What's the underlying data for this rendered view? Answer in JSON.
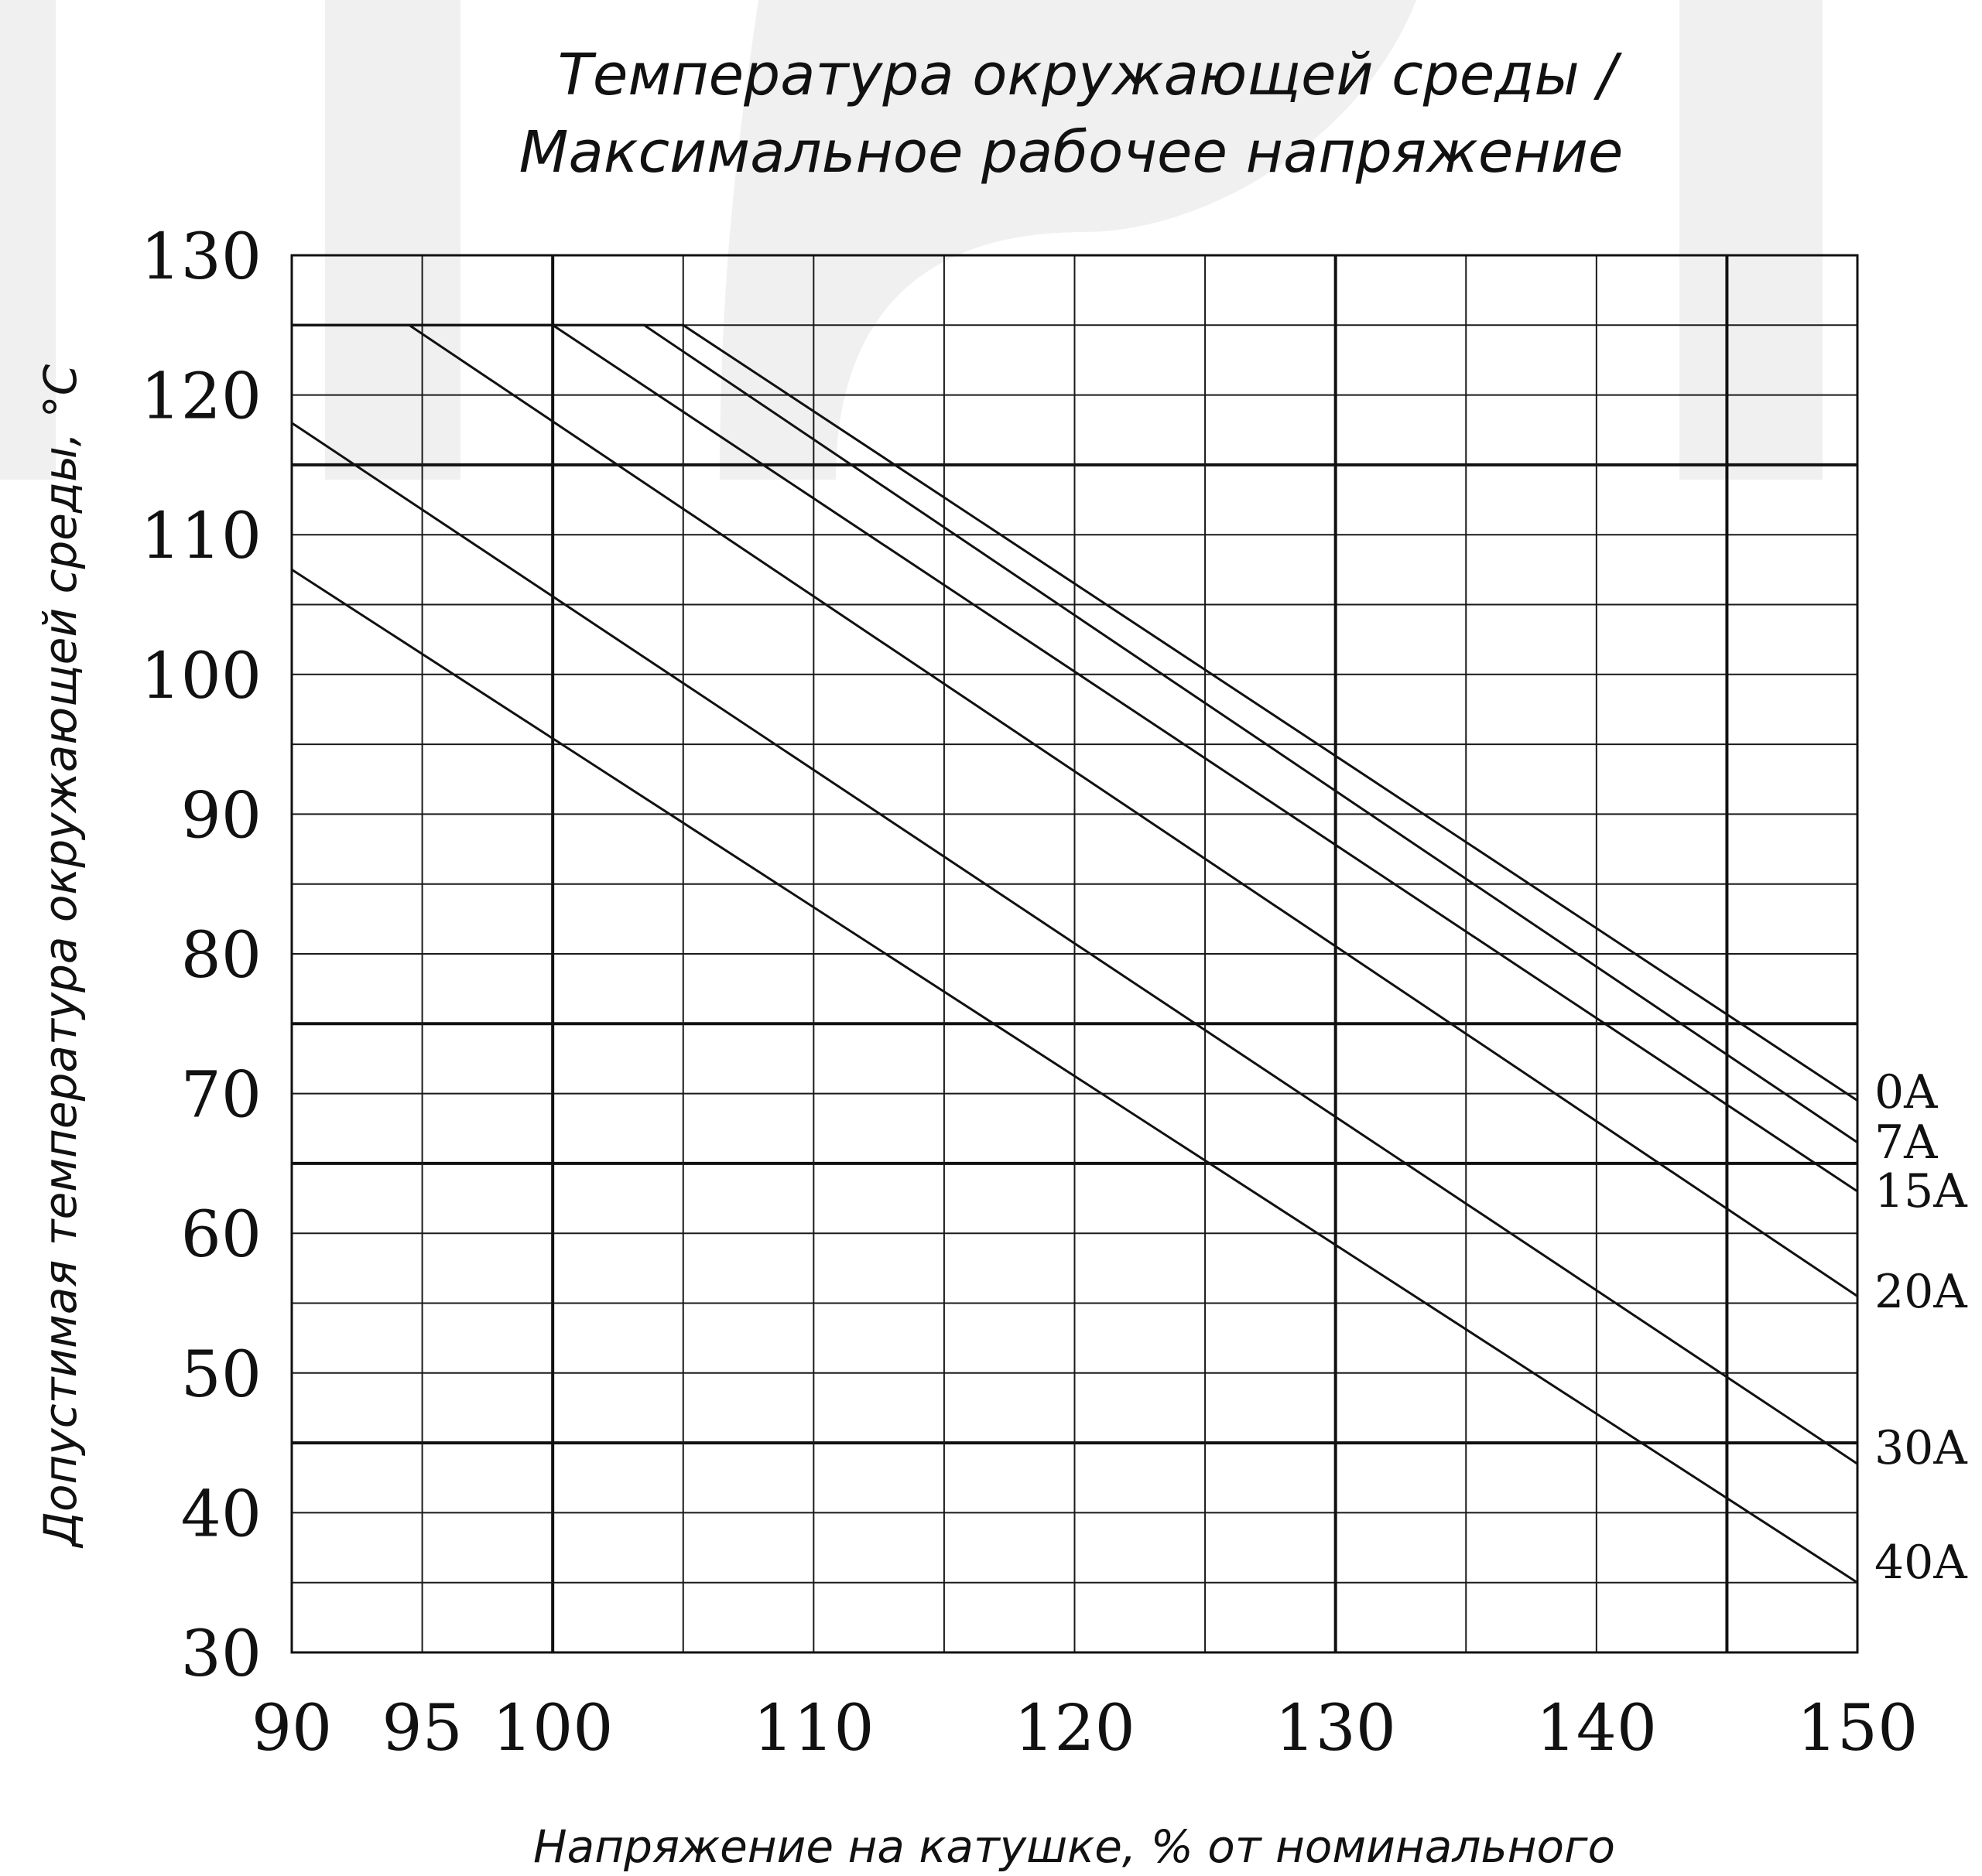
{
  "chart_data": {
    "type": "line",
    "title_lines": [
      "Температура окружающей среды /",
      "Максимальное рабочее напряжение"
    ],
    "xlabel": "Напряжение на катушке, % от номинального",
    "ylabel": "Допустимая температура окружающей среды, °C",
    "xlim": [
      90,
      150
    ],
    "ylim": [
      30,
      130
    ],
    "x_ticks": [
      90,
      95,
      100,
      110,
      120,
      130,
      140,
      150
    ],
    "y_ticks": [
      30,
      40,
      50,
      60,
      70,
      80,
      90,
      100,
      110,
      120,
      130
    ],
    "x_grid": [
      90,
      95,
      100,
      105,
      110,
      115,
      120,
      125,
      130,
      135,
      140,
      145,
      150
    ],
    "x_grid_major": [
      100,
      130,
      145
    ],
    "y_grid": [
      30,
      35,
      40,
      45,
      50,
      55,
      60,
      65,
      70,
      75,
      80,
      85,
      90,
      95,
      100,
      105,
      110,
      115,
      120,
      125,
      130
    ],
    "y_grid_major": [
      45,
      65,
      75,
      115
    ],
    "grid": true,
    "series": [
      {
        "name": "0A",
        "points": [
          [
            90,
            125
          ],
          [
            105,
            125
          ],
          [
            150,
            69.5
          ]
        ]
      },
      {
        "name": "7A",
        "points": [
          [
            90,
            125
          ],
          [
            103.5,
            125
          ],
          [
            150,
            66.5
          ]
        ]
      },
      {
        "name": "15A",
        "points": [
          [
            90,
            125
          ],
          [
            100,
            125
          ],
          [
            150,
            63
          ]
        ]
      },
      {
        "name": "20A",
        "points": [
          [
            90,
            125
          ],
          [
            94.5,
            125
          ],
          [
            150,
            55.5
          ]
        ]
      },
      {
        "name": "30A",
        "points": [
          [
            90,
            118
          ],
          [
            150,
            43.5
          ]
        ]
      },
      {
        "name": "40A",
        "points": [
          [
            90,
            107.5
          ],
          [
            150,
            35
          ]
        ]
      }
    ]
  }
}
